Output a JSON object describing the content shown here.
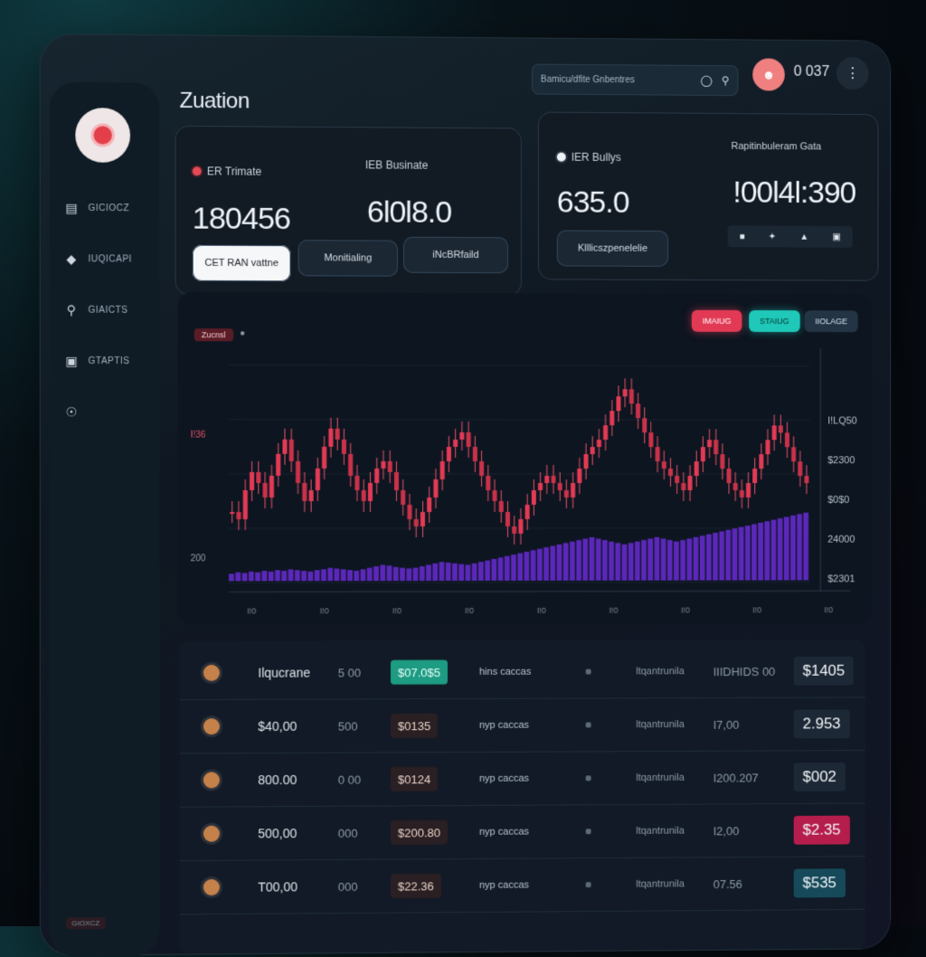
{
  "app": {
    "title": "Zuation"
  },
  "header": {
    "search_placeholder": "Bamicu/dfite Gnbentres",
    "count": "0 037"
  },
  "sidebar": {
    "items": [
      {
        "label": "GICIOCZ"
      },
      {
        "label": "IUQICAPI"
      },
      {
        "label": "GIAICTS"
      },
      {
        "label": "GTAPTIS"
      }
    ],
    "footer": "GIOXCZ"
  },
  "stats": {
    "card1": {
      "label_a": "ER Trimate",
      "value_a": "180456",
      "label_b": "IEB Businate",
      "value_b": "6l0l8.0",
      "buttons": [
        "CET RAN vattne",
        "Monitialing",
        "iNcBRfaild"
      ]
    },
    "card2": {
      "label_a": "IER Bullys",
      "value_a": "635.0",
      "label_b": "Rapitinbuleram Gata",
      "value_b": "!00l4l:390",
      "button": "Klllicszpenelelie",
      "mini_icons": [
        "■",
        "✦",
        "▲",
        "▣"
      ]
    }
  },
  "chart": {
    "tag": "Zucnsl",
    "chips": [
      "IMAIUG",
      "STAIUG",
      "IIOLAGE"
    ],
    "y_right": [
      "I!LQ50",
      "$2300",
      "$0$0",
      "24000",
      "$2301"
    ],
    "y_left": [
      "I!36",
      "200"
    ],
    "x_labels": [
      "I!0",
      "I!0",
      "I!0",
      "I!0",
      "I!0",
      "I!0",
      "I!0",
      "I!0",
      "I!0",
      "I!0"
    ],
    "colors": {
      "up": "#e23a55",
      "down": "#c9324a",
      "volume": "#6a2bd6"
    }
  },
  "chart_data": {
    "type": "bar",
    "title": "",
    "xlabel": "",
    "ylabel": "",
    "candles": [
      52,
      50,
      58,
      63,
      60,
      56,
      62,
      68,
      72,
      66,
      60,
      55,
      58,
      64,
      70,
      75,
      72,
      68,
      62,
      58,
      55,
      60,
      64,
      66,
      63,
      58,
      54,
      50,
      48,
      52,
      56,
      61,
      66,
      70,
      72,
      74,
      70,
      66,
      62,
      58,
      55,
      52,
      48,
      46,
      50,
      54,
      58,
      60,
      62,
      60,
      58,
      56,
      60,
      64,
      68,
      70,
      72,
      76,
      80,
      84,
      86,
      82,
      78,
      74,
      70,
      66,
      64,
      62,
      60,
      58,
      62,
      66,
      70,
      72,
      68,
      64,
      60,
      58,
      56,
      60,
      64,
      68,
      72,
      76,
      74,
      70,
      66,
      62,
      60
    ],
    "volume": [
      10,
      12,
      11,
      13,
      12,
      14,
      13,
      15,
      14,
      16,
      15,
      14,
      13,
      15,
      16,
      18,
      17,
      16,
      15,
      14,
      16,
      18,
      20,
      22,
      21,
      19,
      18,
      17,
      18,
      20,
      22,
      24,
      26,
      25,
      24,
      23,
      22,
      24,
      26,
      28,
      30,
      32,
      34,
      36,
      38,
      40,
      42,
      44,
      46,
      48,
      50,
      52,
      54,
      56,
      58,
      60,
      58,
      56,
      54,
      52,
      50,
      52,
      54,
      56,
      58,
      60,
      58,
      56,
      54,
      56,
      58,
      60,
      62,
      64,
      66,
      68,
      70,
      72,
      74,
      76,
      78,
      80,
      82,
      84,
      86,
      88,
      90,
      92,
      94
    ]
  },
  "table": {
    "rows": [
      {
        "name": "Ilqucrane",
        "qty": "5 00",
        "price": "$07.0$5",
        "price_style": "green",
        "type": "hins caccas",
        "src": "ltqantrunila",
        "val": "IIIDHIDS 00",
        "badge": "$1405",
        "badge_style": ""
      },
      {
        "name": "$40,00",
        "qty": "500",
        "price": "$0135",
        "price_style": "",
        "type": "nyp caccas",
        "src": "ltqantrunila",
        "val": "I7,00",
        "badge": "2.953",
        "badge_style": ""
      },
      {
        "name": "800.00",
        "qty": "0 00",
        "price": "$0124",
        "price_style": "",
        "type": "nyp caccas",
        "src": "ltqantrunila",
        "val": "I200.207",
        "badge": "$002",
        "badge_style": ""
      },
      {
        "name": "500,00",
        "qty": "000",
        "price": "$200.80",
        "price_style": "",
        "type": "nyp caccas",
        "src": "ltqantrunila",
        "val": "I2,00",
        "badge": "$2.35",
        "badge_style": "pink"
      },
      {
        "name": "T00,00",
        "qty": "000",
        "price": "$22.36",
        "price_style": "",
        "type": "nyp caccas",
        "src": "ltqantrunila",
        "val": "07.56",
        "badge": "$535",
        "badge_style": "teal"
      }
    ]
  }
}
